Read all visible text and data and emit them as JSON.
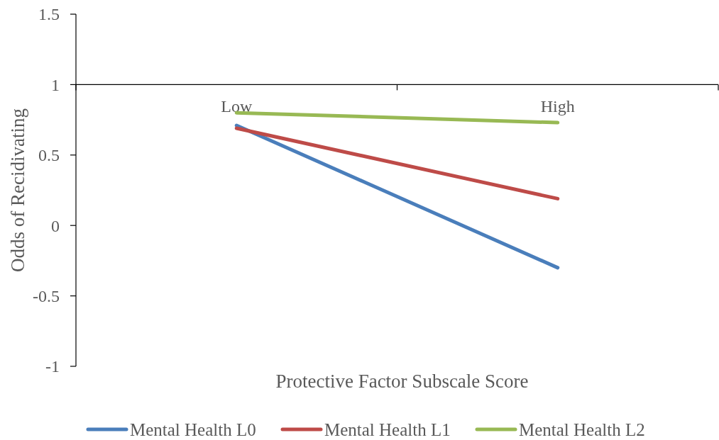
{
  "chart_data": {
    "type": "line",
    "xlabel": "Protective Factor Subscale Score",
    "ylabel": "Odds of Recidivating",
    "categories": [
      "Low",
      "High"
    ],
    "series": [
      {
        "name": "Mental Health L0",
        "color": "#4a7ebb",
        "values": [
          0.71,
          -0.3
        ]
      },
      {
        "name": "Mental Health L1",
        "color": "#be4b48",
        "values": [
          0.69,
          0.19
        ]
      },
      {
        "name": "Mental Health L2",
        "color": "#98b954",
        "values": [
          0.8,
          0.73
        ]
      }
    ],
    "ylim": [
      -1,
      1.5
    ],
    "yticks": [
      -1,
      -0.5,
      0,
      0.5,
      1,
      1.5
    ],
    "grid": false,
    "legend": "bottom",
    "marker": "none",
    "line_style": "solid"
  }
}
